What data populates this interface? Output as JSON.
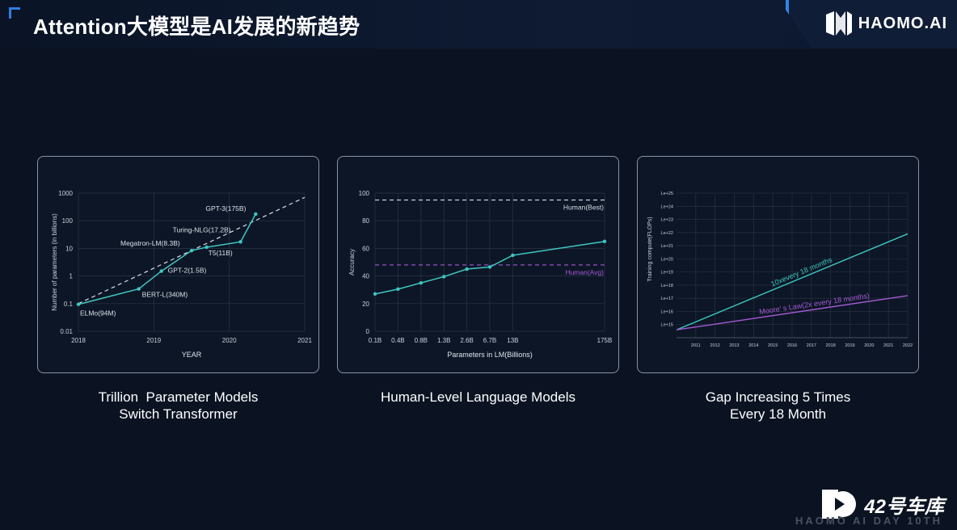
{
  "header": {
    "title": "Attention大模型是AI发展的新趋势",
    "logo_text": "HAOMO.AI",
    "logo_icon": "haomo-logo-icon"
  },
  "watermark": {
    "text": "42号车库",
    "subtext": "HAOMO AI DAY 10TH",
    "icon": "garage-logo-icon"
  },
  "colors": {
    "series": "#3ec7c2",
    "dashed": "#d8dde6",
    "purple": "#a55ad6",
    "panel_border": "#8a93a3"
  },
  "captions": [
    {
      "line1": "Trillion  Parameter Models",
      "line2": "Switch Transformer"
    },
    {
      "line1": "Human-Level Language Models",
      "line2": ""
    },
    {
      "line1": "Gap Increasing 5 Times",
      "line2": "Every 18 Month"
    }
  ],
  "chart_data": [
    {
      "type": "line",
      "xlabel": "YEAR",
      "ylabel": "Number of parameters (in billions)",
      "xlim": [
        2018,
        2021
      ],
      "ylim": [
        0.01,
        1000
      ],
      "yscale": "log",
      "xticks": [
        "2018",
        "2019",
        "2020",
        "2021"
      ],
      "yticks": [
        "1000",
        "100",
        "10",
        "1",
        "0.1",
        "0.01"
      ],
      "grid": true,
      "series": [
        {
          "points": [
            {
              "x": 2018.0,
              "y": 0.094,
              "label": "ELMo(94M)"
            },
            {
              "x": 2018.8,
              "y": 0.34,
              "label": "BERT-L(340M)"
            },
            {
              "x": 2019.1,
              "y": 1.5,
              "label": "GPT-2(1.5B)"
            },
            {
              "x": 2019.5,
              "y": 8.3,
              "label": "Megatron-LM(8.3B)"
            },
            {
              "x": 2019.7,
              "y": 11,
              "label": "T5(11B)"
            },
            {
              "x": 2020.15,
              "y": 17.2,
              "label": "Turing-NLG(17.2B)"
            },
            {
              "x": 2020.35,
              "y": 175,
              "label": "GPT-3(175B)"
            }
          ]
        }
      ],
      "trend": {
        "style": "dashed",
        "from": {
          "x": 2018.0,
          "y": 0.1
        },
        "to": {
          "x": 2021.0,
          "y": 700
        }
      }
    },
    {
      "type": "line",
      "xlabel": "Parameters in LM(Billions)",
      "ylabel": "Accuracy",
      "ylim": [
        0,
        100
      ],
      "categories": [
        "0.1B",
        "0.4B",
        "0.8B",
        "1.3B",
        "2.6B",
        "6.7B",
        "13B",
        "175B"
      ],
      "category_positions": [
        0,
        1,
        2,
        3,
        4,
        5,
        6,
        10
      ],
      "yticks": [
        "100",
        "80",
        "60",
        "40",
        "20",
        "0"
      ],
      "grid": true,
      "series": [
        {
          "points": [
            {
              "x": 0,
              "y": 27
            },
            {
              "x": 1,
              "y": 30.5
            },
            {
              "x": 2,
              "y": 35
            },
            {
              "x": 3,
              "y": 39.5
            },
            {
              "x": 4,
              "y": 45
            },
            {
              "x": 5,
              "y": 46.5
            },
            {
              "x": 6,
              "y": 55
            },
            {
              "x": 10,
              "y": 65
            }
          ]
        }
      ],
      "hlines": [
        {
          "y": 95,
          "label": "Human(Best)",
          "color": "#d8dde6"
        },
        {
          "y": 48,
          "label": "Human(Avg)",
          "color": "#a55ad6"
        }
      ]
    },
    {
      "type": "line",
      "ylabel": "Training compute(FLOPs)",
      "xlim": [
        2010,
        2022
      ],
      "xticks": [
        "2011",
        "2012",
        "2013",
        "2014",
        "2015",
        "2016",
        "2017",
        "2018",
        "2019",
        "2020",
        "2021",
        "2022"
      ],
      "yticks": [
        "Le+25",
        "Le+24",
        "Le+23",
        "Le+22",
        "Le+21",
        "Le+20",
        "Le+19",
        "Le+18",
        "Le+17",
        "Le+16",
        "Le+15"
      ],
      "ylim_exp": [
        14,
        25
      ],
      "grid": true,
      "series": [
        {
          "name": "10xevery 18 months",
          "color": "#3ec7c2",
          "from": {
            "x": 2010,
            "y": 14.6
          },
          "to": {
            "x": 2022,
            "y": 21.9
          }
        },
        {
          "name": "Moore’  s Law(2x every 18 months)",
          "color": "#a55ad6",
          "from": {
            "x": 2010,
            "y": 14.6
          },
          "to": {
            "x": 2022,
            "y": 17.2
          }
        }
      ]
    }
  ]
}
